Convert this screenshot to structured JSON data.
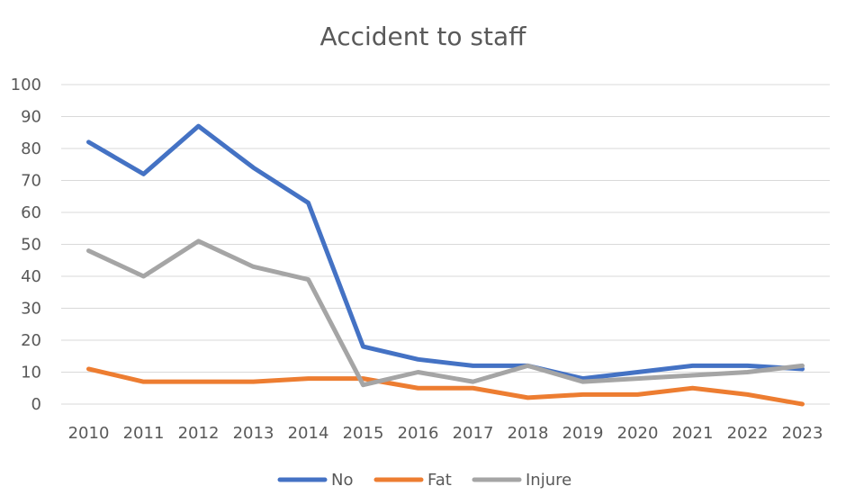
{
  "chart_data": {
    "type": "line",
    "title": "Accident to staff",
    "xlabel": "",
    "ylabel": "",
    "categories": [
      "2010",
      "2011",
      "2012",
      "2013",
      "2014",
      "2015",
      "2016",
      "2017",
      "2018",
      "2019",
      "2020",
      "2021",
      "2022",
      "2023"
    ],
    "ylim": [
      0,
      100
    ],
    "yticks": [
      0,
      10,
      20,
      30,
      40,
      50,
      60,
      70,
      80,
      90,
      100
    ],
    "grid": true,
    "legend_position": "bottom",
    "series": [
      {
        "name": "No",
        "color": "#4472c4",
        "values": [
          82,
          72,
          87,
          74,
          63,
          18,
          14,
          12,
          12,
          8,
          10,
          12,
          12,
          11
        ]
      },
      {
        "name": "Fat",
        "color": "#ed7d31",
        "values": [
          11,
          7,
          7,
          7,
          8,
          8,
          5,
          5,
          2,
          3,
          3,
          5,
          3,
          0
        ]
      },
      {
        "name": "Injure",
        "color": "#a5a5a5",
        "values": [
          48,
          40,
          51,
          43,
          39,
          6,
          10,
          7,
          12,
          7,
          8,
          9,
          10,
          12
        ]
      }
    ]
  }
}
